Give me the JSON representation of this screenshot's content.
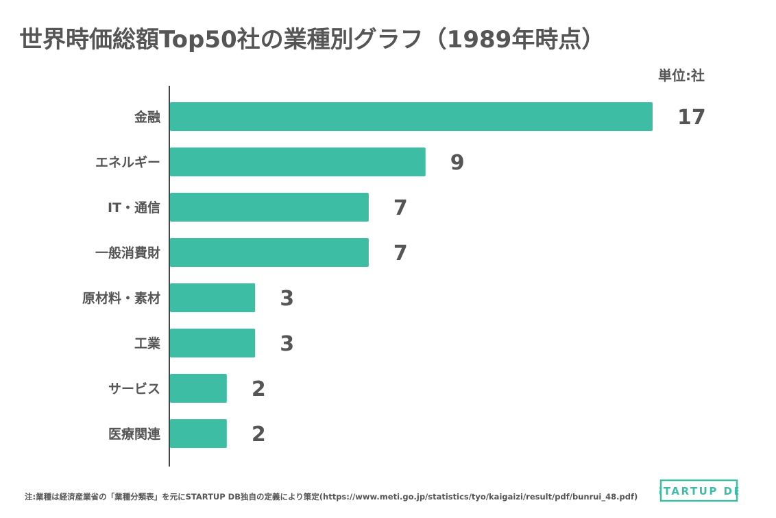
{
  "title": "世界時価総額Top50社の業種別グラフ（1989年時点）",
  "unit_label": "単位:社",
  "footnote": "注:業種は経済産業省の「業種分類表」を元にSTARTUP DB独自の定義により策定(https://www.meti.go.jp/statistics/tyo/kaigaizi/result/pdf/bunrui_48.pdf)",
  "logo_text": "STARTUP DB",
  "colors": {
    "bar": "#3dbda3",
    "text": "#555555",
    "axis": "#444444"
  },
  "chart_data": {
    "type": "bar",
    "orientation": "horizontal",
    "categories": [
      "金融",
      "エネルギー",
      "IT・通信",
      "一般消費財",
      "原材料・素材",
      "工業",
      "サービス",
      "医療関連"
    ],
    "values": [
      17,
      9,
      7,
      7,
      3,
      3,
      2,
      2
    ],
    "data_labels": [
      "17",
      "9",
      "7",
      "7",
      "3",
      "3",
      "2",
      "2"
    ],
    "xlim": [
      0,
      17
    ],
    "grid": false,
    "legend": "none"
  }
}
